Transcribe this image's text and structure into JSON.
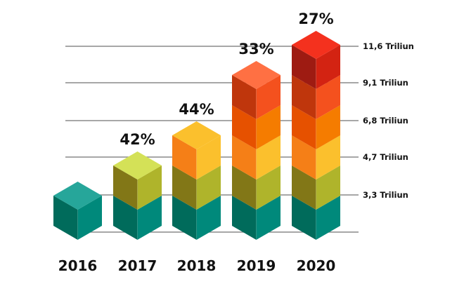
{
  "chart_data": {
    "type": "bar",
    "style": "isometric-stacked-cubes",
    "title": "",
    "xlabel": "",
    "ylabel": "",
    "categories": [
      "2016",
      "2017",
      "2018",
      "2019",
      "2020"
    ],
    "stack_counts": [
      1,
      2,
      3,
      5,
      6
    ],
    "growth_labels": [
      "",
      "42%",
      "44%",
      "33%",
      "27%"
    ],
    "y_ticks": [
      "",
      "3,3 Triliun",
      "4,7 Triliun",
      "6,8 Triliun",
      "9,1 Triliun",
      "11,6 Triliun"
    ],
    "y_tick_values": [
      0,
      3.3,
      4.7,
      6.8,
      9.1,
      11.6
    ],
    "y_unit": "Triliun",
    "grid": true,
    "legend": "none",
    "layer_colors": [
      {
        "top": "#26a69a",
        "left": "#006b5b",
        "right": "#00897b"
      },
      {
        "top": "#d4e157",
        "left": "#827717",
        "right": "#afb42b"
      },
      {
        "top": "#fbc02d",
        "left": "#f57f17",
        "right": "#fbc02d"
      },
      {
        "top": "#ff8f00",
        "left": "#e65100",
        "right": "#f57c00"
      },
      {
        "top": "#ff7043",
        "left": "#bf360c",
        "right": "#f4511e"
      },
      {
        "top": "#f4311e",
        "left": "#9e1b12",
        "right": "#d32312"
      }
    ]
  }
}
